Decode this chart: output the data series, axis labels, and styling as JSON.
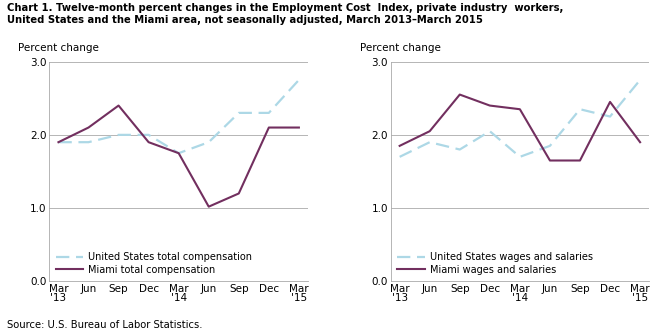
{
  "title_line1": "Chart 1. Twelve-month percent changes in the Employment Cost  Index, private industry  workers,",
  "title_line2": "United States and the Miami area, not seasonally adjusted, March 2013–March 2015",
  "ylabel": "Percent change",
  "source": "Source: U.S. Bureau of Labor Statistics.",
  "x_labels": [
    "Mar\n'13",
    "Jun",
    "Sep",
    "Dec",
    "Mar\n'14",
    "Jun",
    "Sep",
    "Dec",
    "Mar\n'15"
  ],
  "ylim": [
    0.0,
    3.0
  ],
  "yticks": [
    0.0,
    1.0,
    2.0,
    3.0
  ],
  "chart1": {
    "us_total": [
      1.9,
      1.9,
      2.0,
      2.0,
      1.75,
      1.9,
      2.3,
      2.3,
      2.75
    ],
    "miami_total": [
      1.9,
      2.1,
      2.4,
      1.9,
      1.75,
      1.02,
      1.2,
      2.1,
      2.1
    ],
    "legend1": "United States total compensation",
    "legend2": "Miami total compensation"
  },
  "chart2": {
    "us_wages": [
      1.7,
      1.9,
      1.8,
      2.05,
      1.7,
      1.85,
      2.35,
      2.25,
      2.75
    ],
    "miami_wages": [
      1.85,
      2.05,
      2.55,
      2.4,
      2.35,
      1.65,
      1.65,
      2.45,
      1.9
    ],
    "legend1": "United States wages and salaries",
    "legend2": "Miami wages and salaries"
  },
  "us_color": "#ADD8E6",
  "miami_color": "#722F5F",
  "grid_color": "#aaaaaa",
  "bg_color": "#ffffff"
}
